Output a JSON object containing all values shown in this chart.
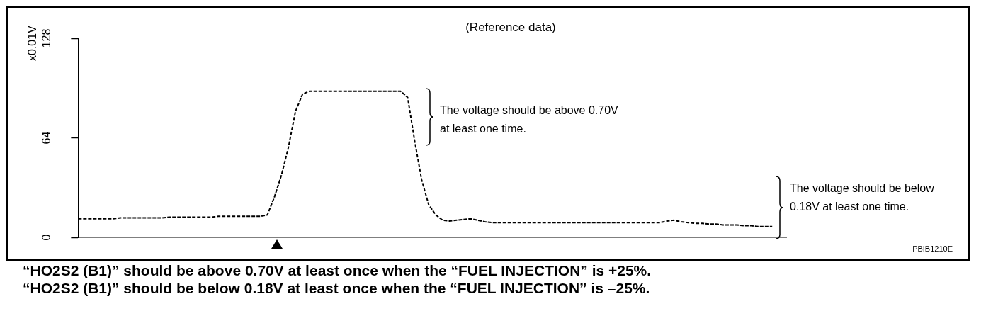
{
  "chart_data": {
    "type": "line",
    "title": "(Reference data)",
    "ylabel": "x0.01V",
    "categories": [
      null,
      null,
      null,
      null,
      null,
      null,
      null,
      null,
      null,
      null,
      null,
      null,
      null,
      null,
      null,
      null,
      null,
      null,
      null,
      null,
      null,
      null,
      null,
      null,
      null,
      null,
      null,
      null,
      null,
      null,
      null,
      null,
      null,
      null,
      null,
      null,
      null,
      null,
      null,
      null,
      null,
      null,
      null,
      null,
      null,
      null,
      null,
      null,
      null,
      null,
      null,
      null,
      null,
      null,
      null,
      null,
      null,
      null,
      null,
      null,
      null,
      null,
      null,
      null,
      null,
      null,
      null,
      null,
      null,
      null,
      null,
      null,
      null,
      null,
      null,
      null,
      null,
      null,
      null,
      null,
      null,
      null,
      null,
      null,
      null,
      null,
      null,
      null,
      null,
      null,
      null,
      null,
      null,
      null,
      null,
      null,
      null,
      null,
      null,
      null,
      null,
      null
    ],
    "series": [
      {
        "color": "#000000",
        "values": [
          12,
          12,
          12,
          12,
          12,
          12,
          12.5,
          12.5,
          12.5,
          12.5,
          12.5,
          12.5,
          12.5,
          13,
          13,
          13,
          13,
          13,
          13,
          13,
          13.5,
          13.5,
          13.5,
          13.5,
          13.5,
          13.5,
          13.5,
          14.5,
          26,
          40,
          58,
          81,
          92,
          94,
          94,
          94,
          94,
          94,
          94,
          94,
          94,
          94,
          94,
          94,
          94,
          94,
          94,
          90,
          62,
          37,
          21,
          14.5,
          11,
          10.5,
          11,
          11.5,
          12,
          11,
          10,
          9.5,
          9.5,
          9.5,
          9.5,
          9.5,
          9.5,
          9.5,
          9.5,
          9.5,
          9.5,
          9.5,
          9.5,
          9.5,
          9.5,
          9.5,
          9.5,
          9.5,
          9.5,
          9.5,
          9.5,
          9.5,
          9.5,
          9.5,
          9.5,
          9.5,
          10.5,
          11,
          10,
          9.5,
          9,
          9,
          8.5,
          8.5,
          8,
          8,
          8,
          7.5,
          7.5,
          7,
          7,
          7,
          null,
          null
        ]
      }
    ],
    "ylim": [
      0,
      128
    ],
    "yticks": [
      0,
      64,
      128
    ],
    "grid": false,
    "legend": false,
    "marker": "none",
    "line_style": "dashed",
    "annotations": [
      "The voltage should be above 0.70V at least one time.",
      "The voltage should be below 0.18V at least one time.",
      "PBIB1210E",
      "“HO2S2 (B1)” should be above 0.70V at least once when the “FUEL INJECTION” is +25%.",
      "“HO2S2 (B1)” should be below 0.18V at least once when the “FUEL INJECTION” is –25%."
    ]
  }
}
